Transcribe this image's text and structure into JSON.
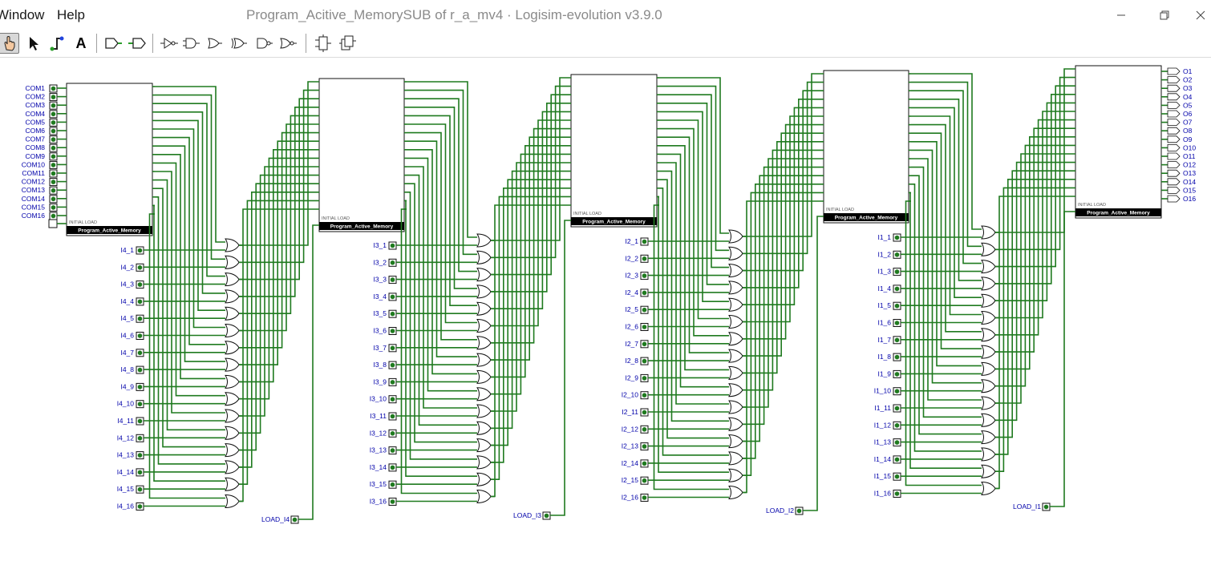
{
  "menu": {
    "window": "Window",
    "help": "Help"
  },
  "window_title": "Program_Acitive_MemorySUB of r_a_mv4 · Logisim-evolution v3.9.0",
  "window_controls": {
    "minimize": "—",
    "maximize": "❐",
    "close": "✕"
  },
  "toolbar": {
    "tools": [
      "poke-tool",
      "select-tool",
      "wiring-tool",
      "text-tool",
      "add-input-pin",
      "add-output-pin",
      "not-gate",
      "buffer",
      "and-gate",
      "or-gate",
      "nand-gate",
      "nor-gate",
      "xor-gate",
      "xnor-gate",
      "subcircuit",
      "subcircuit-alt"
    ],
    "text_tool_label": "A",
    "active_tool": "poke-tool"
  },
  "circuit": {
    "block_name": "Program_Active_Memory",
    "block_name_shown": "Program_Aᴄtive_Memory",
    "initial_load_label": "INITIAL LOAD",
    "com_inputs": [
      "COM1",
      "COM2",
      "COM3",
      "COM4",
      "COM5",
      "COM6",
      "COM7",
      "COM8",
      "COM9",
      "COM10",
      "COM11",
      "COM12",
      "COM13",
      "COM14",
      "COM15",
      "COM16"
    ],
    "outputs": [
      "O1",
      "O2",
      "O3",
      "O4",
      "O5",
      "O6",
      "O7",
      "O8",
      "O9",
      "O10",
      "O11",
      "O12",
      "O13",
      "O14",
      "O15",
      "O16"
    ],
    "stages": [
      {
        "prefix": "I4",
        "load": "LOAD_I4"
      },
      {
        "prefix": "I3",
        "load": "LOAD_I3"
      },
      {
        "prefix": "I2",
        "load": "LOAD_I2"
      },
      {
        "prefix": "I1",
        "load": "LOAD_I1"
      }
    ],
    "gates_per_stage": 16,
    "wire_color": "#1f7a1f",
    "pin_color": "#0000aa"
  }
}
